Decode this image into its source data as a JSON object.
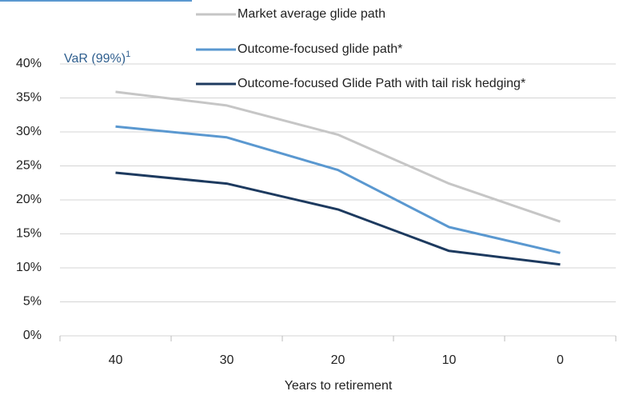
{
  "chart_data": {
    "type": "line",
    "y_label": "VaR (99%)",
    "y_label_note": "1",
    "x_label": "Years to retirement",
    "categories": [
      "40",
      "30",
      "20",
      "10",
      "0"
    ],
    "series": [
      {
        "name": "Market average glide path",
        "color": "#c6c6c6",
        "values": [
          35.9,
          33.9,
          29.6,
          22.4,
          16.8
        ]
      },
      {
        "name": "Outcome-focused glide path*",
        "color": "#5a98d0",
        "values": [
          30.8,
          29.2,
          24.4,
          16.0,
          12.2
        ]
      },
      {
        "name": "Outcome-focused Glide Path with tail risk hedging*",
        "color": "#1d3a5f",
        "values": [
          24.0,
          22.4,
          18.6,
          12.5,
          10.5
        ]
      }
    ],
    "ylim": [
      0,
      40
    ],
    "yticks": [
      {
        "value": 0,
        "label": "0%"
      },
      {
        "value": 5,
        "label": "5%"
      },
      {
        "value": 10,
        "label": "10%"
      },
      {
        "value": 15,
        "label": "15%"
      },
      {
        "value": 20,
        "label": "20%"
      },
      {
        "value": 25,
        "label": "25%"
      },
      {
        "value": 30,
        "label": "30%"
      },
      {
        "value": 35,
        "label": "35%"
      },
      {
        "value": 40,
        "label": "40%"
      }
    ],
    "grid": true
  }
}
